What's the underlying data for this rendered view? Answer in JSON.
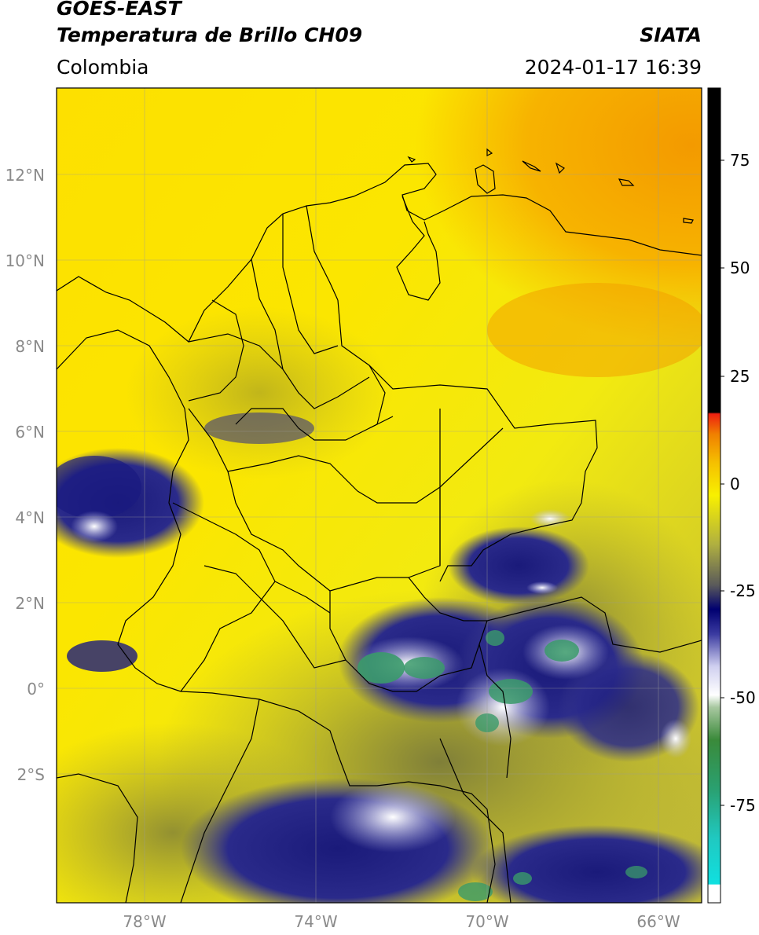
{
  "header": {
    "satellite": "GOES-EAST",
    "product": "Temperatura de Brillo CH09",
    "agency": "SIATA",
    "region": "Colombia",
    "datetime": "2024-01-17 16:39"
  },
  "axes": {
    "lat_ticks": [
      "12°N",
      "10°N",
      "8°N",
      "6°N",
      "4°N",
      "2°N",
      "0°",
      "2°S"
    ],
    "lon_ticks": [
      "78°W",
      "74°W",
      "70°W",
      "66°W"
    ]
  },
  "colorbar": {
    "ticks": [
      "75",
      "50",
      "25",
      "0",
      "-25",
      "-50",
      "-75"
    ],
    "range": [
      -95,
      90
    ],
    "colors": {
      "hot": "#000000",
      "warm": "#e53010",
      "orange": "#f5a000",
      "yellow": "#fff200",
      "olive": "#8a8a2a",
      "navy": "#101070",
      "white": "#f4f4f4",
      "green": "#3a9a5a",
      "cyan": "#20d8d8"
    }
  }
}
